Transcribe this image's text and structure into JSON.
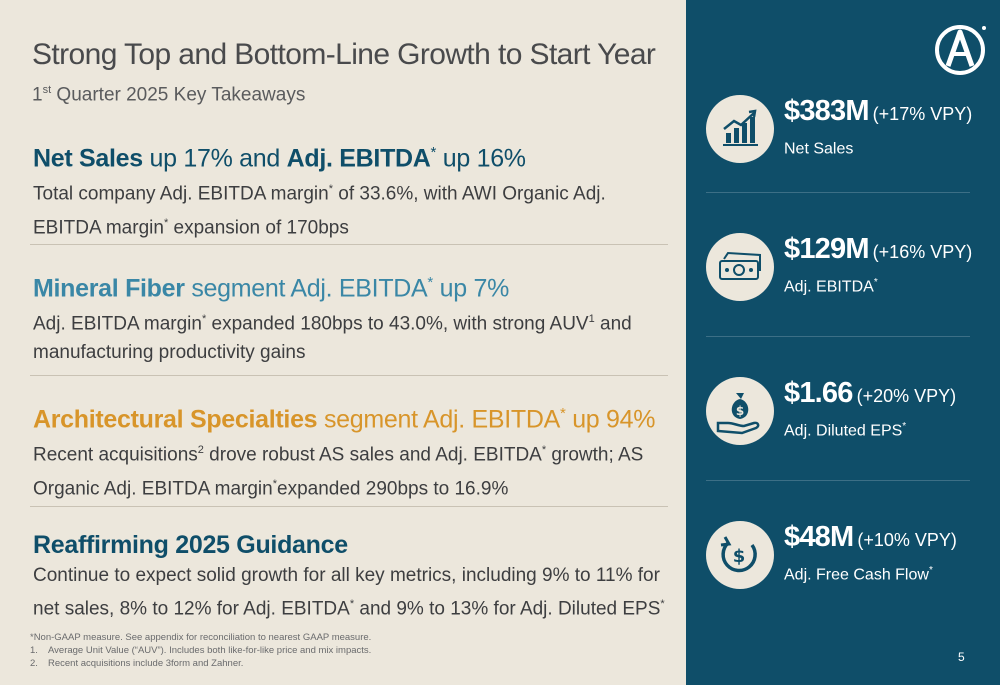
{
  "title": "Strong Top and Bottom-Line Growth to Start Year",
  "subtitle": {
    "sup": "st",
    "prefix": "1",
    "rest": " Quarter 2025 Key Takeaways"
  },
  "sections": [
    {
      "head_b1": "Net Sales",
      "head_t1": " up 17% and ",
      "head_b2": "Adj. EBITDA",
      "head_sup": "*",
      "head_t2": " up 16%",
      "body_1": "Total company Adj. EBITDA margin",
      "body_sup1": "*",
      "body_2": " of 33.6%, with AWI Organic Adj. EBITDA margin",
      "body_sup2": "*",
      "body_3": " expansion of 170bps"
    },
    {
      "head_b1": "Mineral Fiber",
      "head_t1": " segment Adj. EBITDA",
      "head_sup": "*",
      "head_t2": " up 7%",
      "body_1": "Adj. EBITDA margin",
      "body_sup1": "*",
      "body_2": " expanded 180bps to 43.0%, with strong AUV",
      "body_sup2": "1",
      "body_3": " and manufacturing productivity gains"
    },
    {
      "head_b1": "Architectural Specialties",
      "head_t1": " segment Adj. EBITDA",
      "head_sup": "*",
      "head_t2": " up 94%",
      "body_1": "Recent acquisitions",
      "body_sup1": "2",
      "body_2": " drove robust AS sales and Adj. EBITDA",
      "body_sup2": "*",
      "body_3": " growth; AS Organic Adj. EBITDA margin",
      "body_sup3": "*",
      "body_4": "expanded 290bps to 16.9%"
    },
    {
      "head_b1": "Reaffirming 2025 Guidance",
      "body_1": "Continue to expect solid growth for all key metrics, including 9% to 11% for net sales, 8% to 12% for Adj. EBITDA",
      "body_sup1": "*",
      "body_2": " and 9% to 13% for Adj. Diluted EPS",
      "body_sup2": "*"
    }
  ],
  "footnotes": {
    "star": "*Non-GAAP measure. See appendix for reconciliation to nearest GAAP measure.",
    "items": [
      {
        "num": "1.",
        "text": "Average Unit Value (“AUV”). Includes both like-for-like price and mix impacts."
      },
      {
        "num": "2.",
        "text": "Recent acquisitions include 3form and Zahner."
      }
    ]
  },
  "metrics": [
    {
      "icon": "growth-chart-icon",
      "value": "$383M",
      "change": "(+17% VPY)",
      "label": "Net Sales",
      "label_sup": ""
    },
    {
      "icon": "cash-bill-icon",
      "value": "$129M",
      "change": "(+16% VPY)",
      "label": "Adj. EBITDA",
      "label_sup": "*"
    },
    {
      "icon": "money-bag-hand-icon",
      "value": "$1.66",
      "change": "(+20% VPY)",
      "label": "Adj. Diluted EPS",
      "label_sup": "*"
    },
    {
      "icon": "cash-flow-cycle-icon",
      "value": "$48M",
      "change": "(+10% VPY)",
      "label": "Adj. Free Cash Flow",
      "label_sup": "*"
    }
  ],
  "page_number": "5",
  "colors": {
    "background": "#ece7dc",
    "panel": "#0f4e69",
    "navy": "#0f4e69",
    "teal": "#3a87a6",
    "gold": "#d8952a"
  }
}
